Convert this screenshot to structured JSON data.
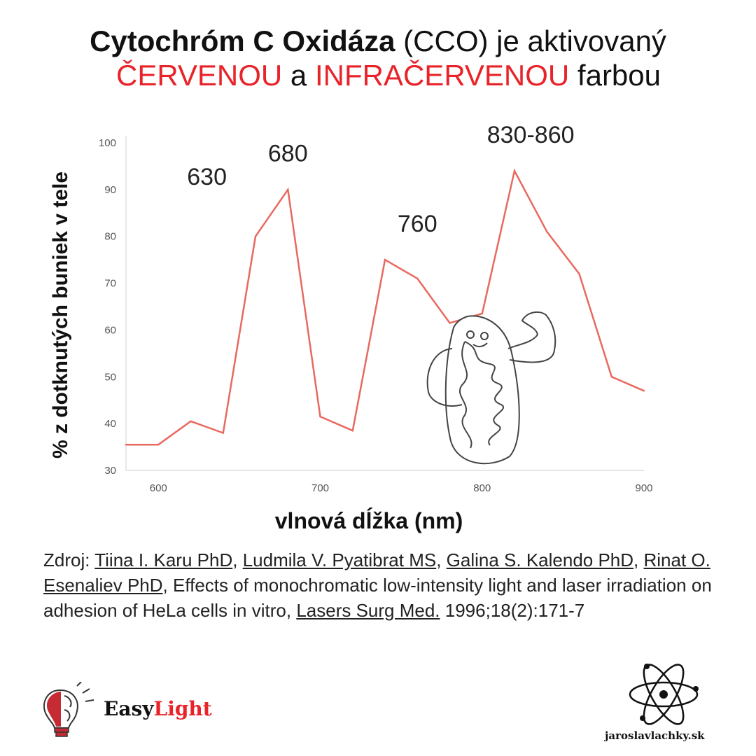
{
  "header": {
    "title_bold": "Cytochróm C Oxidáza",
    "title_rest": " (CCO) je aktivovaný",
    "subtitle_red1": "ČERVENOU",
    "subtitle_mid": " a ",
    "subtitle_red2": "INFRAČERVENOU",
    "subtitle_end": " farbou"
  },
  "chart_data": {
    "type": "line",
    "xlabel": "vlnová dĺžka (nm)",
    "ylabel": "% z dotknutých buniek v tele",
    "xlim": [
      580,
      900
    ],
    "ylim": [
      30,
      100
    ],
    "x_ticks": [
      "600",
      "700",
      "800",
      "900"
    ],
    "y_ticks": [
      "30",
      "40",
      "50",
      "60",
      "70",
      "80",
      "90",
      "100"
    ],
    "grid": false,
    "series": [
      {
        "color": "#e8695f",
        "x": [
          580,
          600,
          620,
          640,
          660,
          680,
          700,
          720,
          740,
          760,
          780,
          800,
          820,
          840,
          860,
          880,
          900
        ],
        "y": [
          35.5,
          35.5,
          40.5,
          38,
          80,
          90,
          41.5,
          38.5,
          75,
          71,
          61.5,
          63.5,
          94,
          81,
          72,
          50,
          47
        ]
      }
    ],
    "annotations": [
      {
        "text": "630",
        "x": 630,
        "y": 91
      },
      {
        "text": "680",
        "x": 680,
        "y": 96
      },
      {
        "text": "760",
        "x": 760,
        "y": 81
      },
      {
        "text": "830-860",
        "x": 830,
        "y": 100
      }
    ]
  },
  "source": {
    "prefix": "Zdroj: ",
    "author1": "Tiina I. Karu PhD",
    "sep1": ", ",
    "author2": "Ludmila V. Pyatibrat MS",
    "sep2": ", ",
    "author3": "Galina S. Kalendo PhD",
    "sep3": ", ",
    "author4": "Rinat O. Esenaliev PhD",
    "title": ", Effects of monochromatic low-intensity light and laser irradiation on adhesion of HeLa cells in vitro, ",
    "journal": "Lasers Surg Med.",
    "citation": " 1996;18(2):171-7"
  },
  "brand": {
    "name_easy": "Easy",
    "name_light": "Light",
    "icon": "brain-lightbulb-icon"
  },
  "site": {
    "name": "jaroslavlachky.sk",
    "icon": "atom-icon"
  }
}
